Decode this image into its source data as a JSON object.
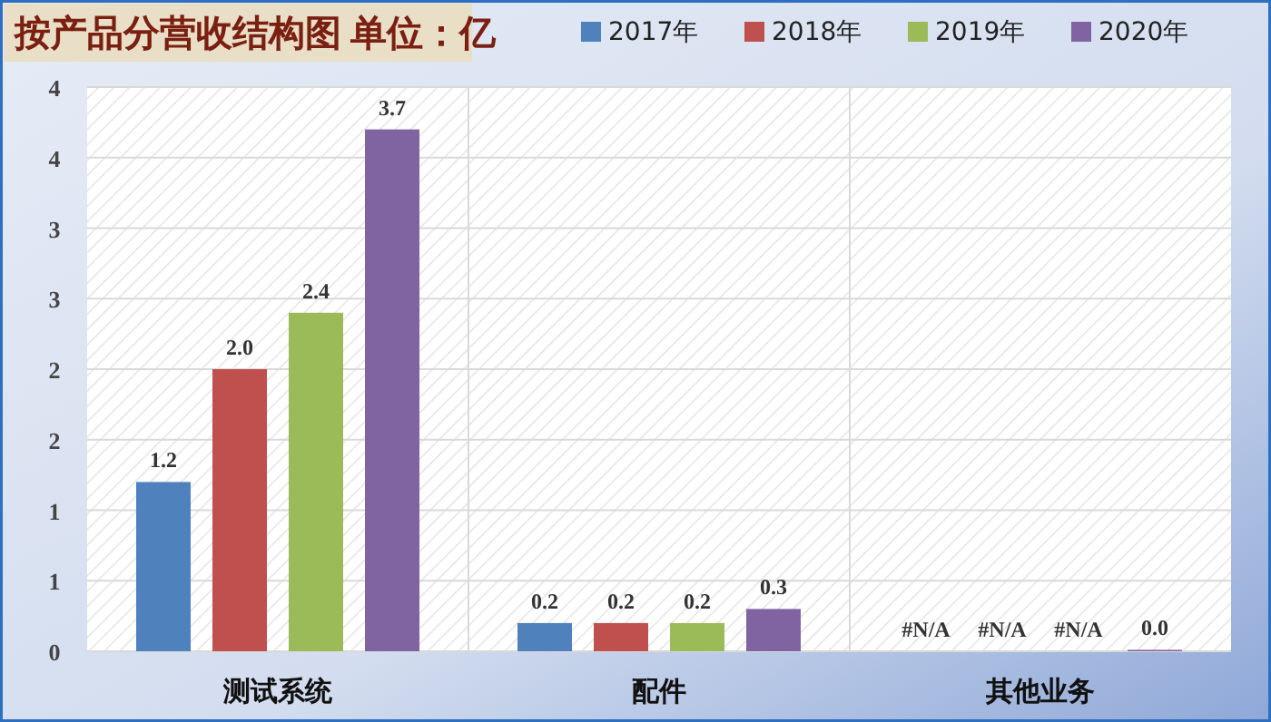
{
  "chart_data": {
    "type": "bar",
    "title": "按产品分营收结构图 单位：亿",
    "categories": [
      "测试系统",
      "配件",
      "其他业务"
    ],
    "series": [
      {
        "name": "2017年",
        "color": "#4f81bd",
        "values": [
          1.2,
          0.2,
          null
        ],
        "value_labels": [
          "1.2",
          "0.2",
          "#N/A"
        ]
      },
      {
        "name": "2018年",
        "color": "#c0504d",
        "values": [
          2.0,
          0.2,
          null
        ],
        "value_labels": [
          "2.0",
          "0.2",
          "#N/A"
        ]
      },
      {
        "name": "2019年",
        "color": "#9bbb59",
        "values": [
          2.4,
          0.2,
          null
        ],
        "value_labels": [
          "2.4",
          "0.2",
          "#N/A"
        ]
      },
      {
        "name": "2020年",
        "color": "#8064a2",
        "values": [
          3.7,
          0.3,
          0.01
        ],
        "value_labels": [
          "3.7",
          "0.3",
          "0.0"
        ]
      }
    ],
    "ylim": [
      0,
      4
    ],
    "yticks": [
      0,
      {
        "value": 0.5,
        "label": "1"
      },
      1,
      {
        "value": 1.5,
        "label": "2"
      },
      2,
      {
        "value": 2.5,
        "label": "3"
      },
      3,
      {
        "value": 3.5,
        "label": "4"
      },
      4
    ],
    "grid": true,
    "legend": "top right"
  }
}
